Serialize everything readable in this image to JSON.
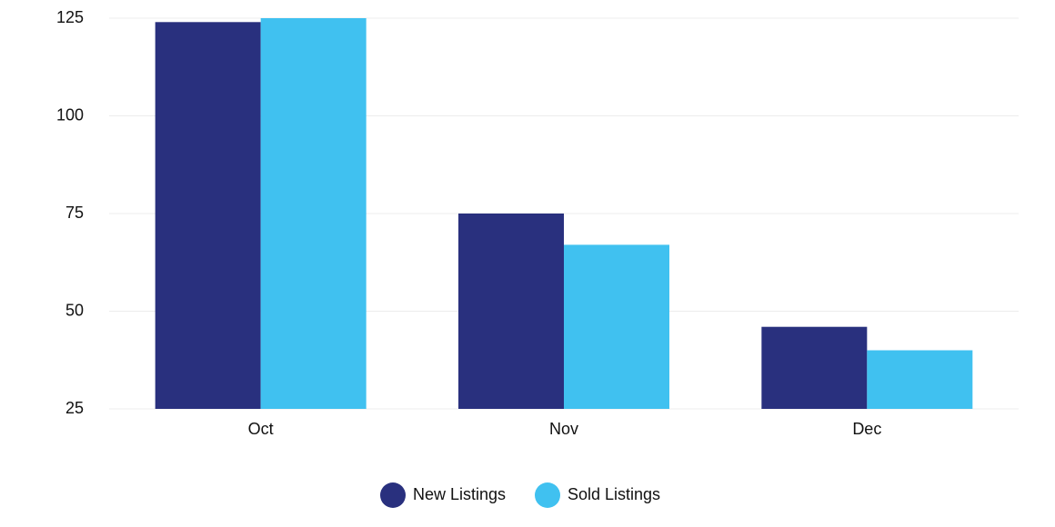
{
  "chart_data": {
    "type": "bar",
    "categories": [
      "Oct",
      "Nov",
      "Dec"
    ],
    "series": [
      {
        "name": "New Listings",
        "color": "#29307e",
        "values": [
          124,
          75,
          46
        ]
      },
      {
        "name": "Sold Listings",
        "color": "#40c1f0",
        "values": [
          125,
          67,
          40
        ]
      }
    ],
    "ylim": [
      25,
      125
    ],
    "yticks": [
      25,
      50,
      75,
      100,
      125
    ],
    "grid": true,
    "legend": "bottom"
  }
}
